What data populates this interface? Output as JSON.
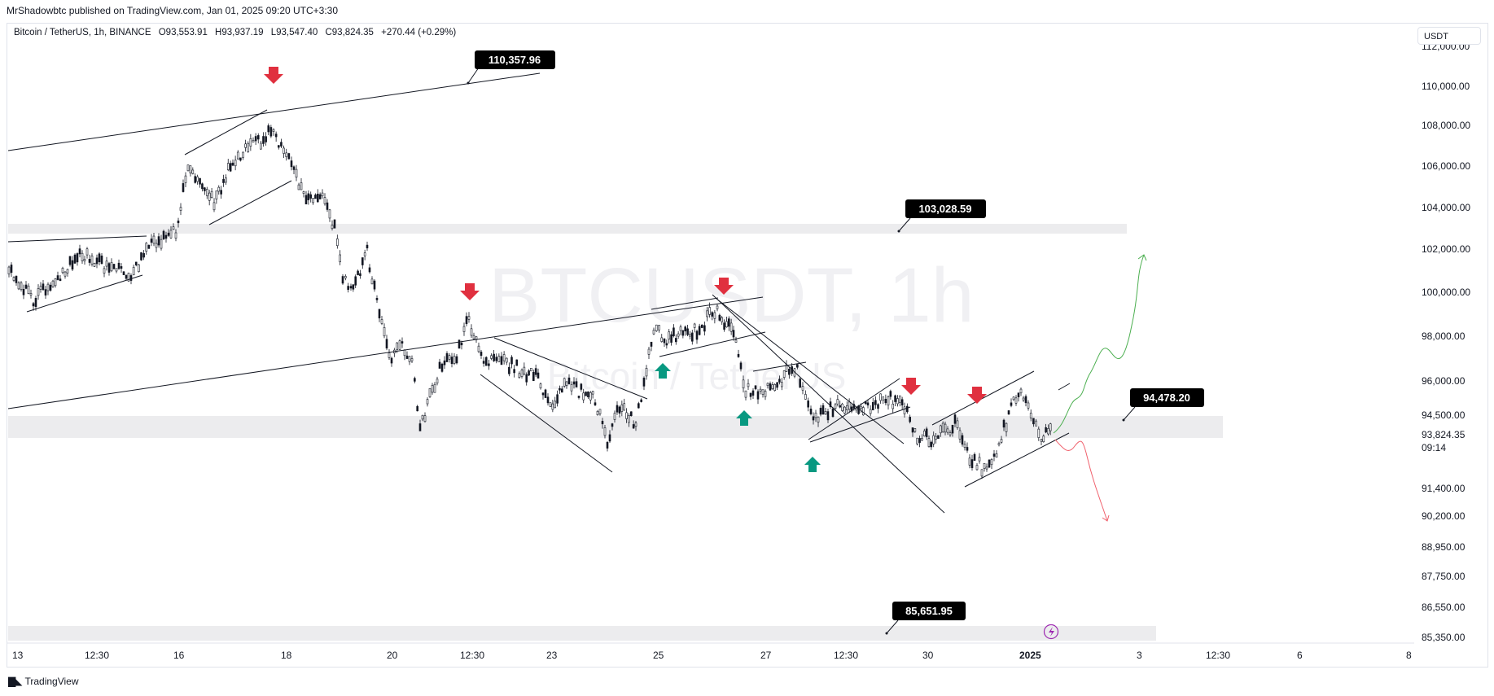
{
  "publisher_line": "MrShadowbtc published on TradingView.com, Jan 01, 2025 09:20 UTC+3:30",
  "symbol": {
    "name": "Bitcoin / TetherUS, 1h, BINANCE",
    "open": "O93,553.91",
    "high": "H93,937.19",
    "low": "L93,547.40",
    "close": "C93,824.35",
    "change": "+270.44 (+0.29%)"
  },
  "watermark": {
    "ticker": "BTCUSDT, 1h",
    "desc": "Bitcoin / TetherUS"
  },
  "currency_label": "USDT",
  "price_axis": [
    "112,000.00",
    "110,000.00",
    "108,000.00",
    "106,000.00",
    "104,000.00",
    "102,000.00",
    "100,000.00",
    "98,000.00",
    "96,000.00",
    "94,500.00",
    "91,400.00",
    "90,200.00",
    "88,950.00",
    "87,750.00",
    "86,550.00",
    "85,350.00"
  ],
  "last_price": "93,824.35",
  "countdown": "09:14",
  "time_axis": [
    "13",
    "12:30",
    "16",
    "18",
    "20",
    "12:30",
    "23",
    "25",
    "27",
    "12:30",
    "30",
    "2025",
    "3",
    "12:30",
    "6",
    "8"
  ],
  "price_callouts": [
    "110,357.96",
    "103,028.59",
    "94,478.20",
    "85,651.95"
  ],
  "brand": "TradingView",
  "colors": {
    "up_arrow": "#089981",
    "down_arrow": "#e0303f",
    "bull_path": "#4caf50",
    "bear_path": "#f0616d",
    "zone": "#ececee"
  }
}
